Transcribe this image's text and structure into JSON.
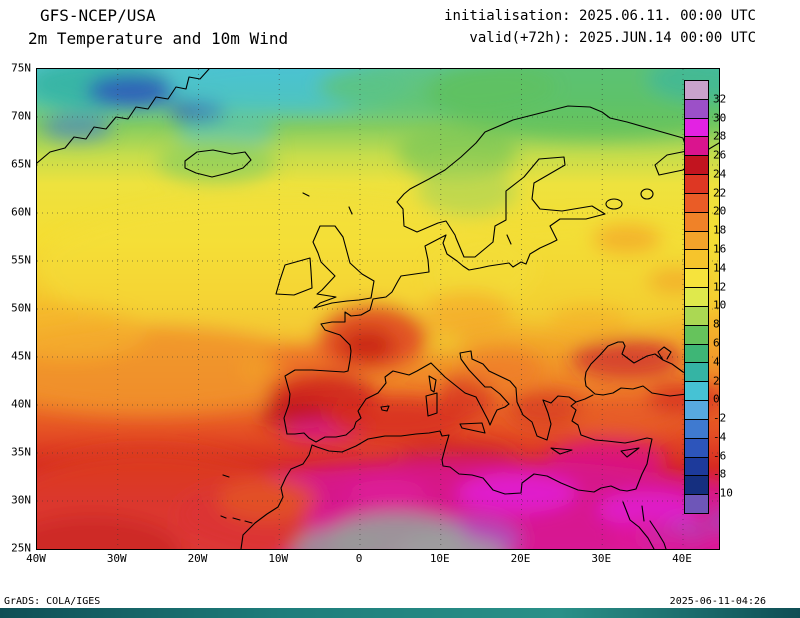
{
  "header": {
    "model": "GFS-NCEP/USA",
    "product": "2m Temperature and 10m Wind",
    "init_line": "initialisation: 2025.06.11. 00:00 UTC",
    "valid_line": "valid(+72h): 2025.JUN.14 00:00 UTC"
  },
  "map": {
    "lat_ticks": [
      "75N",
      "70N",
      "65N",
      "60N",
      "55N",
      "50N",
      "45N",
      "40N",
      "35N",
      "30N",
      "25N"
    ],
    "lon_ticks": [
      "40W",
      "30W",
      "20W",
      "10W",
      "0",
      "10E",
      "20E",
      "30E",
      "40E"
    ]
  },
  "colorbar": {
    "tick_labels": [
      "32",
      "30",
      "28",
      "26",
      "24",
      "22",
      "20",
      "18",
      "16",
      "14",
      "12",
      "10",
      "8",
      "6",
      "4",
      "2",
      "0",
      "-2",
      "-4",
      "-6",
      "-8",
      "-10"
    ],
    "segment_colors": [
      "#c9a2cc",
      "#9c50c8",
      "#e322e3",
      "#da148e",
      "#c2141f",
      "#de3723",
      "#ea5c26",
      "#f08228",
      "#f3a32a",
      "#f6c42c",
      "#f6e33c",
      "#dfe94c",
      "#abd853",
      "#66c35c",
      "#3eb676",
      "#35b4a4",
      "#46c2d4",
      "#57a9e0",
      "#3f7ad0",
      "#2d55bb",
      "#1d3a9b",
      "#152f7f",
      "#6e56b8"
    ]
  },
  "footer": {
    "credit": "GrADS: COLA/IGES",
    "timestamp": "2025-06-11-04:26"
  }
}
